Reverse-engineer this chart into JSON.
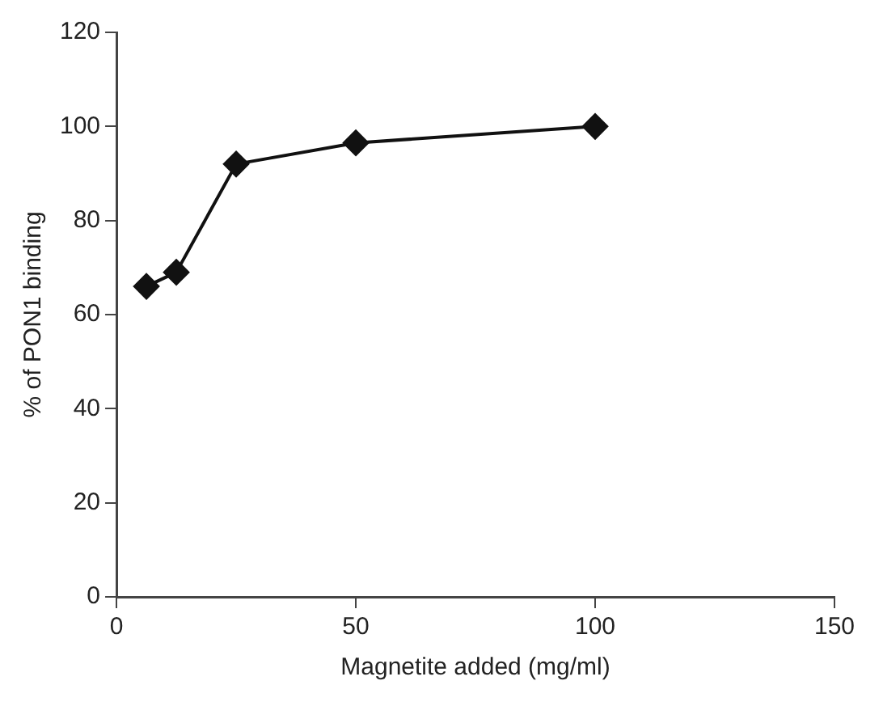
{
  "chart_data": {
    "type": "line",
    "xlabel": "Magnetite added (mg/ml)",
    "ylabel": "% of PON1 binding",
    "x": [
      6.25,
      12.5,
      25,
      50,
      100
    ],
    "series": [
      {
        "color": "#111111",
        "values": [
          66,
          69,
          92,
          96.5,
          100
        ]
      }
    ],
    "xlim": [
      0,
      150
    ],
    "xticks": [
      0,
      50,
      100,
      150
    ],
    "ylim": [
      0,
      120
    ],
    "yticks": [
      0,
      20,
      40,
      60,
      80,
      100,
      120
    ],
    "grid": false,
    "legend": false,
    "marker": "diamond",
    "line_style": "solid"
  }
}
